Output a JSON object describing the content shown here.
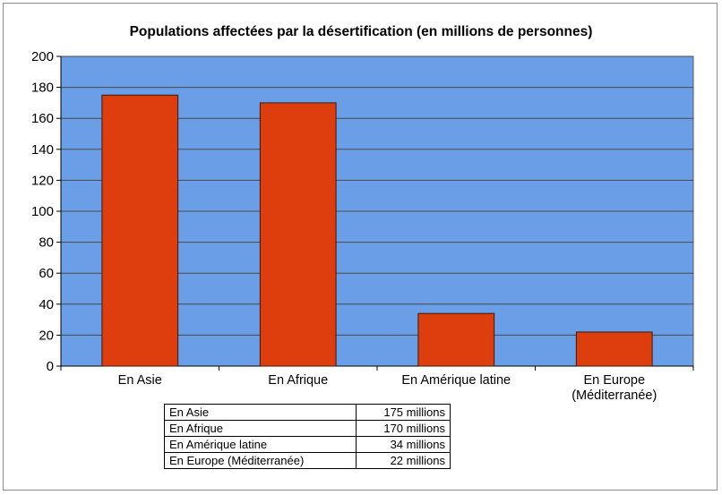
{
  "chart_data": {
    "type": "bar",
    "title": "Populations affectées par la désertification (en millions de personnes)",
    "categories": [
      {
        "label": "En Asie",
        "label_line2": ""
      },
      {
        "label": "En Afrique",
        "label_line2": ""
      },
      {
        "label": "En Amérique latine",
        "label_line2": ""
      },
      {
        "label": "En Europe",
        "label_line2": "(Méditerranée)"
      }
    ],
    "values": [
      175,
      170,
      34,
      22
    ],
    "ylim": [
      0,
      200
    ],
    "yticks": [
      0,
      20,
      40,
      60,
      80,
      100,
      120,
      140,
      160,
      180,
      200
    ],
    "grid": true,
    "plot_background": "#6a9ee6",
    "bar_color": "#de3e0e",
    "table": [
      {
        "name": "En Asie",
        "value": "175 millions"
      },
      {
        "name": "En Afrique",
        "value": "170 millions"
      },
      {
        "name": "En Amérique latine",
        "value": "34 millions"
      },
      {
        "name": "En Europe (Méditerranée)",
        "value": "22 millions"
      }
    ]
  }
}
